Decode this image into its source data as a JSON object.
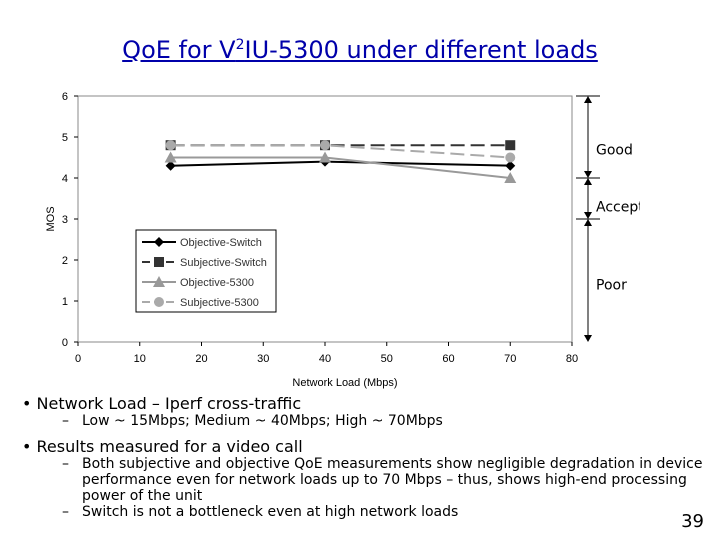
{
  "slide": {
    "title_pre": "QoE for V",
    "title_sup": "2",
    "title_post": "IU-5300 under different loads",
    "page_number": "39"
  },
  "bullets": [
    {
      "text": "Network Load – Iperf cross-traffic",
      "subs": [
        "Low ~ 15Mbps; Medium ~ 40Mbps; High ~ 70Mbps"
      ]
    },
    {
      "text": "Results measured for a video call",
      "subs": [
        "Both subjective and objective QoE measurements show negligible degradation in device performance even for network loads up to 70 Mbps – thus, shows high-end processing power of the unit",
        "Switch is not a bottleneck even at high network loads"
      ]
    }
  ],
  "chart_data": {
    "type": "line",
    "xlabel": "Network Load (Mbps)",
    "ylabel": "MOS",
    "xlim": [
      0,
      80
    ],
    "ylim": [
      0,
      6
    ],
    "xticks": [
      "0",
      "10",
      "20",
      "30",
      "40",
      "50",
      "60",
      "70",
      "80"
    ],
    "yticks": [
      "0",
      "1",
      "2",
      "3",
      "4",
      "5",
      "6"
    ],
    "x": [
      15,
      40,
      70
    ],
    "series": [
      {
        "name": "Objective-Switch",
        "values": [
          4.3,
          4.4,
          4.3
        ],
        "color": "#000000",
        "marker": "diamond",
        "dash": false
      },
      {
        "name": "Subjective-Switch",
        "values": [
          4.8,
          4.8,
          4.8
        ],
        "color": "#333333",
        "marker": "square",
        "dash": true
      },
      {
        "name": "Objective-5300",
        "values": [
          4.5,
          4.5,
          4.0
        ],
        "color": "#999999",
        "marker": "triangle",
        "dash": false
      },
      {
        "name": "Subjective-5300",
        "values": [
          4.8,
          4.8,
          4.5
        ],
        "color": "#aaaaaa",
        "marker": "circle",
        "dash": true
      }
    ],
    "zones": [
      {
        "label": "Good",
        "from": 4,
        "to": 6
      },
      {
        "label": "Acceptable",
        "from": 3,
        "to": 4
      },
      {
        "label": "Poor",
        "from": 0,
        "to": 3
      }
    ]
  }
}
